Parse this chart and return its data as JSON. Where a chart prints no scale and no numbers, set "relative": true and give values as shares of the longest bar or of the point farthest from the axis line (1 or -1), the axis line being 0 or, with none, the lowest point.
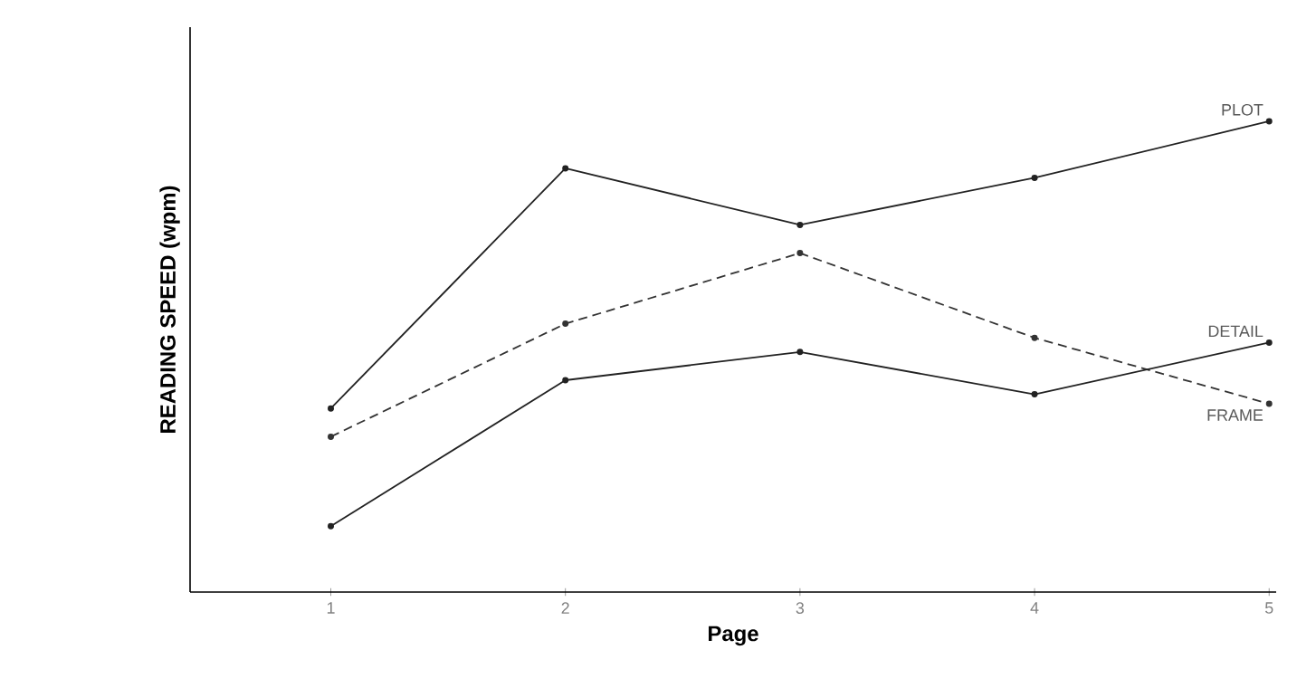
{
  "chart_data": {
    "type": "line",
    "xlabel": "Page",
    "ylabel": "READING SPEED (wpm)",
    "relative": true,
    "categories": [
      "1",
      "2",
      "3",
      "4",
      "5"
    ],
    "marker": "circle",
    "legend": false,
    "series": [
      {
        "name": "PLOT",
        "color": "#222222",
        "line_style": "solid",
        "values": [
          0.39,
          0.9,
          0.78,
          0.88,
          1.0
        ]
      },
      {
        "name": "FRAME",
        "color": "#333333",
        "line_style": "dashed",
        "values": [
          0.33,
          0.57,
          0.72,
          0.54,
          0.4
        ]
      },
      {
        "name": "DETAIL",
        "color": "#222222",
        "line_style": "solid",
        "values": [
          0.14,
          0.45,
          0.51,
          0.42,
          0.53
        ]
      }
    ]
  }
}
